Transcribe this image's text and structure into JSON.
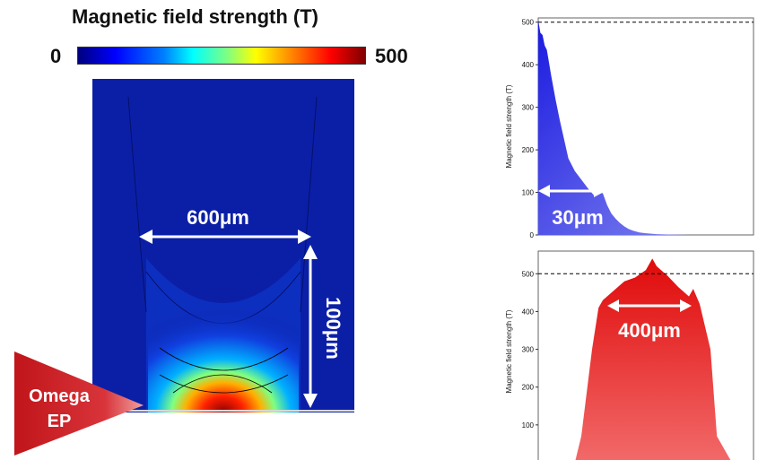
{
  "title": "Magnetic field strength (T)",
  "colorbar": {
    "min_label": "0",
    "max_label": "500",
    "colormap": "jet"
  },
  "simulation": {
    "width_annotation": "600μm",
    "height_annotation": "100μm",
    "laser_label": [
      "Omega",
      "EP"
    ],
    "laser_color": "#c0151a",
    "background_color": "#0b1fa6"
  },
  "chart_data": [
    {
      "type": "area",
      "ylabel": "Magnetic field strength (T)",
      "xlabel": "",
      "ylim": [
        0,
        510
      ],
      "yticks": [
        0,
        100,
        200,
        300,
        400,
        500
      ],
      "reference_line": 500,
      "color": "#2828e0",
      "annotation": "30μm",
      "x": [
        0,
        1,
        2,
        3,
        4,
        5,
        6,
        8,
        10,
        12,
        14,
        17,
        20,
        23,
        26,
        28,
        30,
        32,
        34,
        36,
        38,
        40,
        42,
        44,
        47,
        50,
        55,
        60,
        70,
        80,
        100
      ],
      "values": [
        505,
        475,
        470,
        445,
        435,
        405,
        375,
        320,
        270,
        225,
        180,
        150,
        130,
        110,
        92,
        100,
        98,
        70,
        50,
        38,
        28,
        20,
        14,
        10,
        6,
        4,
        2,
        1,
        0,
        0,
        0
      ]
    },
    {
      "type": "area",
      "ylabel": "Magnetic field strength (T)",
      "xlabel": "",
      "ylim": [
        0,
        560
      ],
      "yticks": [
        100,
        200,
        300,
        400,
        500
      ],
      "reference_line": 500,
      "color": "#e81a1a",
      "annotation": "400μm",
      "x": [
        0,
        10,
        17,
        20,
        25,
        28,
        30,
        35,
        40,
        45,
        50,
        53,
        55,
        57,
        60,
        65,
        70,
        72,
        75,
        80,
        83,
        90,
        100
      ],
      "values": [
        0,
        0,
        0,
        70,
        300,
        410,
        430,
        455,
        480,
        490,
        510,
        540,
        520,
        510,
        495,
        465,
        440,
        460,
        420,
        300,
        70,
        0,
        0
      ]
    }
  ]
}
